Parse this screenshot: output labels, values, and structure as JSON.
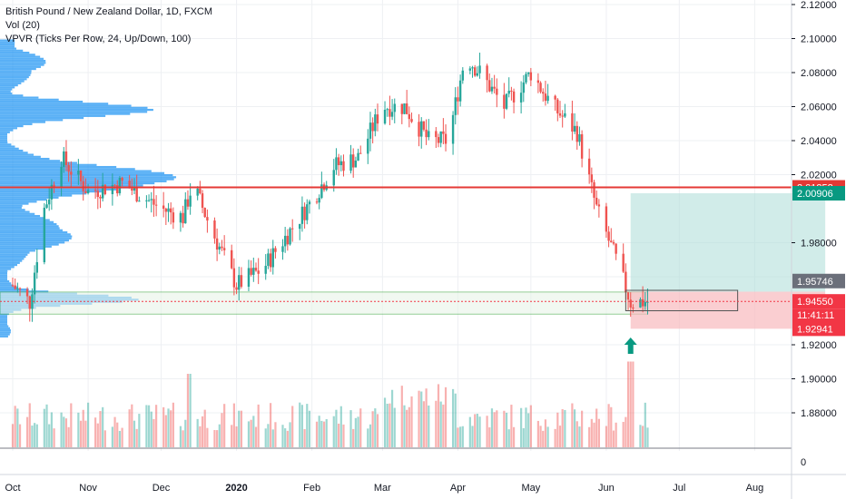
{
  "chart_data": {
    "type": "candlestick",
    "title": "British Pound / New Zealand Dollar, 1D, FXCM",
    "indicators": [
      "Vol (20)",
      "VPVR (Ticks Per Row, 24, Up/Down, 100)"
    ],
    "y_axis": {
      "range": [
        1.865,
        2.125
      ],
      "ticks": [
        "2.12000",
        "2.10000",
        "2.08000",
        "2.06000",
        "2.04000",
        "2.02000",
        "1.98000",
        "1.92000",
        "1.90000",
        "1.88000"
      ]
    },
    "volume_axis_label": "0",
    "x_axis": {
      "labels": [
        "Oct",
        "Nov",
        "Dec",
        "2020",
        "Feb",
        "Mar",
        "Apr",
        "May",
        "Jun",
        "Jul",
        "Aug"
      ],
      "range": [
        "2019-10-01",
        "2020-08-31"
      ]
    },
    "price_levels": [
      {
        "label": "2.01252",
        "value": 2.01252,
        "color": "#e53935",
        "style": "line"
      },
      {
        "label": "2.00906",
        "value": 2.00906,
        "color": "#089981",
        "style": "tag"
      },
      {
        "label": "1.95746",
        "value": 1.95746,
        "color": "#6b6f7a",
        "style": "tag"
      },
      {
        "label": "1.94550",
        "value": 1.9455,
        "color": "#f23645",
        "style": "tag",
        "countdown": "11:41:11"
      },
      {
        "label": "1.92941",
        "value": 1.92941,
        "color": "#f23645",
        "style": "tag"
      }
    ],
    "support_zone": {
      "from": 1.938,
      "to": 1.951,
      "start": "2019-10-01",
      "end": "2020-06-18"
    },
    "position": {
      "entry": 1.9512,
      "target": 2.00906,
      "stop": 1.92941,
      "start": "2020-06-11",
      "end": "2020-08-30",
      "profit_color": "#b2dfdb",
      "loss_color": "#f8b9bd"
    },
    "rectangle": {
      "top": 1.952,
      "bottom": 1.94,
      "start": "2020-06-09",
      "end": "2020-07-25"
    },
    "arrow": {
      "date": "2020-06-11",
      "direction": "up",
      "color": "#089981"
    },
    "series": [
      {
        "name": "Price",
        "anchors": [
          [
            "2019-10-01",
            1.955
          ],
          [
            "2019-10-08",
            1.945
          ],
          [
            "2019-10-14",
            2.0
          ],
          [
            "2019-10-21",
            2.03
          ],
          [
            "2019-11-01",
            2.01
          ],
          [
            "2019-11-15",
            2.015
          ],
          [
            "2019-12-01",
            2.0
          ],
          [
            "2019-12-10",
            1.995
          ],
          [
            "2019-12-14",
            2.015
          ],
          [
            "2019-12-21",
            1.99
          ],
          [
            "2020-01-01",
            1.955
          ],
          [
            "2020-01-12",
            1.965
          ],
          [
            "2020-02-01",
            2.005
          ],
          [
            "2020-02-10",
            2.025
          ],
          [
            "2020-02-20",
            2.03
          ],
          [
            "2020-03-01",
            2.06
          ],
          [
            "2020-03-10",
            2.06
          ],
          [
            "2020-03-20",
            2.04
          ],
          [
            "2020-03-28",
            2.04
          ],
          [
            "2020-04-04",
            2.09
          ],
          [
            "2020-04-10",
            2.08
          ],
          [
            "2020-04-20",
            2.06
          ],
          [
            "2020-05-01",
            2.08
          ],
          [
            "2020-05-10",
            2.06
          ],
          [
            "2020-05-20",
            2.045
          ],
          [
            "2020-05-28",
            2.0
          ],
          [
            "2020-06-05",
            1.97
          ],
          [
            "2020-06-11",
            1.945
          ],
          [
            "2020-06-18",
            1.9455
          ]
        ]
      },
      {
        "name": "Vol (20)",
        "note": "daily volume bars coloured by candle direction"
      }
    ],
    "grid": true
  }
}
